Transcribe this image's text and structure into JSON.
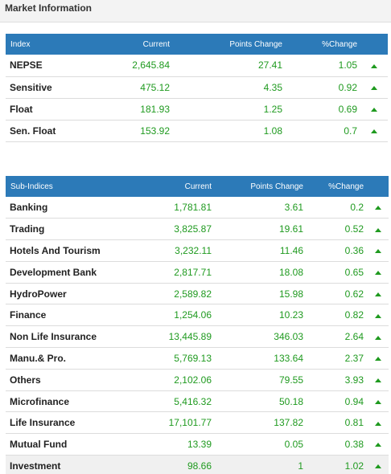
{
  "header": {
    "title": "Market Information"
  },
  "index_table": {
    "columns": [
      "Index",
      "Current",
      "Points Change",
      "%Change"
    ],
    "rows": [
      {
        "name": "NEPSE",
        "current": "2,645.84",
        "points_change": "27.41",
        "pct_change": "1.05",
        "trend_icon": "up-arrow-icon"
      },
      {
        "name": "Sensitive",
        "current": "475.12",
        "points_change": "4.35",
        "pct_change": "0.92",
        "trend_icon": "up-arrow-icon"
      },
      {
        "name": "Float",
        "current": "181.93",
        "points_change": "1.25",
        "pct_change": "0.69",
        "trend_icon": "up-arrow-icon"
      },
      {
        "name": "Sen. Float",
        "current": "153.92",
        "points_change": "1.08",
        "pct_change": "0.7",
        "trend_icon": "up-arrow-icon"
      }
    ]
  },
  "sub_indices_table": {
    "columns": [
      "Sub-Indices",
      "Current",
      "Points Change",
      "%Change"
    ],
    "rows": [
      {
        "name": "Banking",
        "current": "1,781.81",
        "points_change": "3.61",
        "pct_change": "0.2",
        "trend_icon": "up-arrow-icon"
      },
      {
        "name": "Trading",
        "current": "3,825.87",
        "points_change": "19.61",
        "pct_change": "0.52",
        "trend_icon": "up-arrow-icon"
      },
      {
        "name": "Hotels And Tourism",
        "current": "3,232.11",
        "points_change": "11.46",
        "pct_change": "0.36",
        "trend_icon": "up-arrow-icon"
      },
      {
        "name": "Development Bank",
        "current": "2,817.71",
        "points_change": "18.08",
        "pct_change": "0.65",
        "trend_icon": "up-arrow-icon"
      },
      {
        "name": "HydroPower",
        "current": "2,589.82",
        "points_change": "15.98",
        "pct_change": "0.62",
        "trend_icon": "up-arrow-icon"
      },
      {
        "name": "Finance",
        "current": "1,254.06",
        "points_change": "10.23",
        "pct_change": "0.82",
        "trend_icon": "up-arrow-icon"
      },
      {
        "name": "Non Life Insurance",
        "current": "13,445.89",
        "points_change": "346.03",
        "pct_change": "2.64",
        "trend_icon": "up-arrow-icon"
      },
      {
        "name": "Manu.& Pro.",
        "current": "5,769.13",
        "points_change": "133.64",
        "pct_change": "2.37",
        "trend_icon": "up-arrow-icon"
      },
      {
        "name": "Others",
        "current": "2,102.06",
        "points_change": "79.55",
        "pct_change": "3.93",
        "trend_icon": "up-arrow-icon"
      },
      {
        "name": "Microfinance",
        "current": "5,416.32",
        "points_change": "50.18",
        "pct_change": "0.94",
        "trend_icon": "up-arrow-icon"
      },
      {
        "name": "Life Insurance",
        "current": "17,101.77",
        "points_change": "137.82",
        "pct_change": "0.81",
        "trend_icon": "up-arrow-icon"
      },
      {
        "name": "Mutual Fund",
        "current": "13.39",
        "points_change": "0.05",
        "pct_change": "0.38",
        "trend_icon": "up-arrow-icon"
      },
      {
        "name": "Investment",
        "current": "98.66",
        "points_change": "1",
        "pct_change": "1.02",
        "trend_icon": "up-arrow-icon"
      }
    ]
  },
  "colors": {
    "header_blue": "#2c7ab8",
    "positive_green": "#1f9a1f",
    "row_border": "#dcdcdc"
  }
}
